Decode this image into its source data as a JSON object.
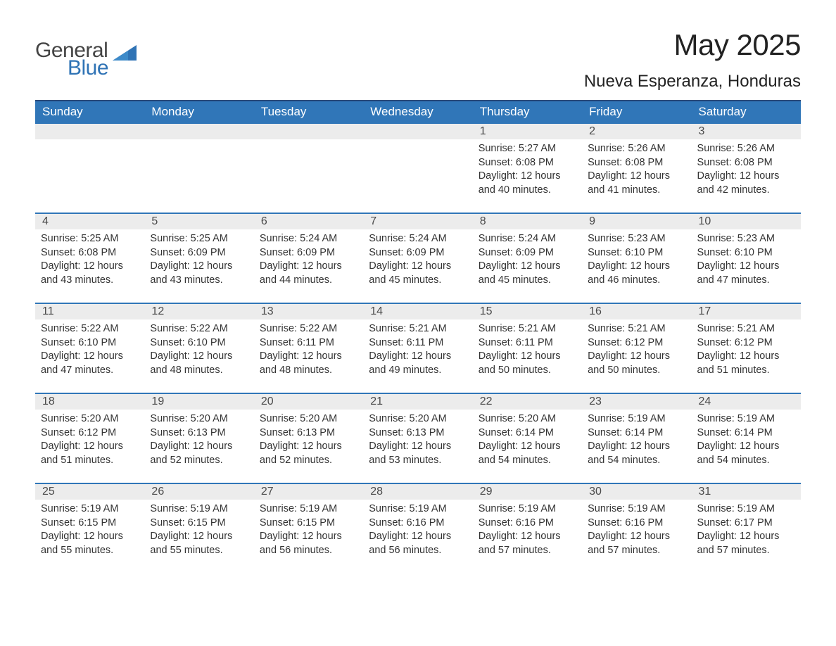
{
  "brand": {
    "part1": "General",
    "part2": "Blue",
    "logo_color": "#2f73b5"
  },
  "title": "May 2025",
  "location": "Nueva Esperanza, Honduras",
  "colors": {
    "header_bg": "#3076b8",
    "header_text": "#ffffff",
    "header_border_top": "#2a4a7a",
    "day_num_bg": "#ececec",
    "day_num_text": "#4a4a4a",
    "day_border_top": "#3076b8",
    "body_text": "#333333",
    "page_bg": "#ffffff"
  },
  "typography": {
    "title_fontsize": 42,
    "location_fontsize": 24,
    "header_fontsize": 17,
    "daynum_fontsize": 16,
    "body_fontsize": 14.5,
    "logo_fontsize": 30
  },
  "weekdays": [
    "Sunday",
    "Monday",
    "Tuesday",
    "Wednesday",
    "Thursday",
    "Friday",
    "Saturday"
  ],
  "weeks": [
    [
      null,
      null,
      null,
      null,
      {
        "n": "1",
        "sunrise": "Sunrise: 5:27 AM",
        "sunset": "Sunset: 6:08 PM",
        "daylight": "Daylight: 12 hours and 40 minutes."
      },
      {
        "n": "2",
        "sunrise": "Sunrise: 5:26 AM",
        "sunset": "Sunset: 6:08 PM",
        "daylight": "Daylight: 12 hours and 41 minutes."
      },
      {
        "n": "3",
        "sunrise": "Sunrise: 5:26 AM",
        "sunset": "Sunset: 6:08 PM",
        "daylight": "Daylight: 12 hours and 42 minutes."
      }
    ],
    [
      {
        "n": "4",
        "sunrise": "Sunrise: 5:25 AM",
        "sunset": "Sunset: 6:08 PM",
        "daylight": "Daylight: 12 hours and 43 minutes."
      },
      {
        "n": "5",
        "sunrise": "Sunrise: 5:25 AM",
        "sunset": "Sunset: 6:09 PM",
        "daylight": "Daylight: 12 hours and 43 minutes."
      },
      {
        "n": "6",
        "sunrise": "Sunrise: 5:24 AM",
        "sunset": "Sunset: 6:09 PM",
        "daylight": "Daylight: 12 hours and 44 minutes."
      },
      {
        "n": "7",
        "sunrise": "Sunrise: 5:24 AM",
        "sunset": "Sunset: 6:09 PM",
        "daylight": "Daylight: 12 hours and 45 minutes."
      },
      {
        "n": "8",
        "sunrise": "Sunrise: 5:24 AM",
        "sunset": "Sunset: 6:09 PM",
        "daylight": "Daylight: 12 hours and 45 minutes."
      },
      {
        "n": "9",
        "sunrise": "Sunrise: 5:23 AM",
        "sunset": "Sunset: 6:10 PM",
        "daylight": "Daylight: 12 hours and 46 minutes."
      },
      {
        "n": "10",
        "sunrise": "Sunrise: 5:23 AM",
        "sunset": "Sunset: 6:10 PM",
        "daylight": "Daylight: 12 hours and 47 minutes."
      }
    ],
    [
      {
        "n": "11",
        "sunrise": "Sunrise: 5:22 AM",
        "sunset": "Sunset: 6:10 PM",
        "daylight": "Daylight: 12 hours and 47 minutes."
      },
      {
        "n": "12",
        "sunrise": "Sunrise: 5:22 AM",
        "sunset": "Sunset: 6:10 PM",
        "daylight": "Daylight: 12 hours and 48 minutes."
      },
      {
        "n": "13",
        "sunrise": "Sunrise: 5:22 AM",
        "sunset": "Sunset: 6:11 PM",
        "daylight": "Daylight: 12 hours and 48 minutes."
      },
      {
        "n": "14",
        "sunrise": "Sunrise: 5:21 AM",
        "sunset": "Sunset: 6:11 PM",
        "daylight": "Daylight: 12 hours and 49 minutes."
      },
      {
        "n": "15",
        "sunrise": "Sunrise: 5:21 AM",
        "sunset": "Sunset: 6:11 PM",
        "daylight": "Daylight: 12 hours and 50 minutes."
      },
      {
        "n": "16",
        "sunrise": "Sunrise: 5:21 AM",
        "sunset": "Sunset: 6:12 PM",
        "daylight": "Daylight: 12 hours and 50 minutes."
      },
      {
        "n": "17",
        "sunrise": "Sunrise: 5:21 AM",
        "sunset": "Sunset: 6:12 PM",
        "daylight": "Daylight: 12 hours and 51 minutes."
      }
    ],
    [
      {
        "n": "18",
        "sunrise": "Sunrise: 5:20 AM",
        "sunset": "Sunset: 6:12 PM",
        "daylight": "Daylight: 12 hours and 51 minutes."
      },
      {
        "n": "19",
        "sunrise": "Sunrise: 5:20 AM",
        "sunset": "Sunset: 6:13 PM",
        "daylight": "Daylight: 12 hours and 52 minutes."
      },
      {
        "n": "20",
        "sunrise": "Sunrise: 5:20 AM",
        "sunset": "Sunset: 6:13 PM",
        "daylight": "Daylight: 12 hours and 52 minutes."
      },
      {
        "n": "21",
        "sunrise": "Sunrise: 5:20 AM",
        "sunset": "Sunset: 6:13 PM",
        "daylight": "Daylight: 12 hours and 53 minutes."
      },
      {
        "n": "22",
        "sunrise": "Sunrise: 5:20 AM",
        "sunset": "Sunset: 6:14 PM",
        "daylight": "Daylight: 12 hours and 54 minutes."
      },
      {
        "n": "23",
        "sunrise": "Sunrise: 5:19 AM",
        "sunset": "Sunset: 6:14 PM",
        "daylight": "Daylight: 12 hours and 54 minutes."
      },
      {
        "n": "24",
        "sunrise": "Sunrise: 5:19 AM",
        "sunset": "Sunset: 6:14 PM",
        "daylight": "Daylight: 12 hours and 54 minutes."
      }
    ],
    [
      {
        "n": "25",
        "sunrise": "Sunrise: 5:19 AM",
        "sunset": "Sunset: 6:15 PM",
        "daylight": "Daylight: 12 hours and 55 minutes."
      },
      {
        "n": "26",
        "sunrise": "Sunrise: 5:19 AM",
        "sunset": "Sunset: 6:15 PM",
        "daylight": "Daylight: 12 hours and 55 minutes."
      },
      {
        "n": "27",
        "sunrise": "Sunrise: 5:19 AM",
        "sunset": "Sunset: 6:15 PM",
        "daylight": "Daylight: 12 hours and 56 minutes."
      },
      {
        "n": "28",
        "sunrise": "Sunrise: 5:19 AM",
        "sunset": "Sunset: 6:16 PM",
        "daylight": "Daylight: 12 hours and 56 minutes."
      },
      {
        "n": "29",
        "sunrise": "Sunrise: 5:19 AM",
        "sunset": "Sunset: 6:16 PM",
        "daylight": "Daylight: 12 hours and 57 minutes."
      },
      {
        "n": "30",
        "sunrise": "Sunrise: 5:19 AM",
        "sunset": "Sunset: 6:16 PM",
        "daylight": "Daylight: 12 hours and 57 minutes."
      },
      {
        "n": "31",
        "sunrise": "Sunrise: 5:19 AM",
        "sunset": "Sunset: 6:17 PM",
        "daylight": "Daylight: 12 hours and 57 minutes."
      }
    ]
  ]
}
